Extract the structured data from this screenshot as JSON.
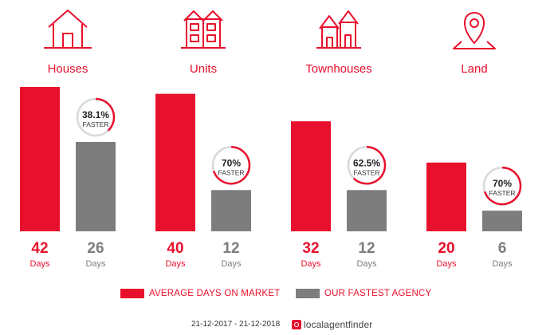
{
  "chart_data": {
    "type": "bar",
    "categories": [
      "Houses",
      "Units",
      "Townhouses",
      "Land"
    ],
    "series": [
      {
        "name": "AVERAGE DAYS ON MARKET",
        "values": [
          42,
          40,
          32,
          20
        ]
      },
      {
        "name": "OUR FASTEST AGENCY",
        "values": [
          26,
          12,
          12,
          6
        ]
      }
    ],
    "unit_label": "Days",
    "faster": [
      {
        "percent": "38.1%",
        "label": "FASTER",
        "fraction": 0.381
      },
      {
        "percent": "70%",
        "label": "FASTER",
        "fraction": 0.7
      },
      {
        "percent": "62.5%",
        "label": "FASTER",
        "fraction": 0.625
      },
      {
        "percent": "70%",
        "label": "FASTER",
        "fraction": 0.7
      }
    ],
    "icons": [
      "house-icon",
      "units-icon",
      "townhouses-icon",
      "land-pin-icon"
    ],
    "ylim": [
      0,
      42
    ],
    "colors": {
      "market": "#e8112d",
      "agency": "#7d7d7d",
      "ring_track": "#d9d9d9",
      "category_text": "#e8112d"
    }
  },
  "legend": {
    "market_label": "AVERAGE DAYS ON MARKET",
    "agency_label": "OUR FASTEST AGENCY"
  },
  "footer": {
    "period": "21-12-2017 - 21-12-2018",
    "brand": "localagentfinder"
  }
}
